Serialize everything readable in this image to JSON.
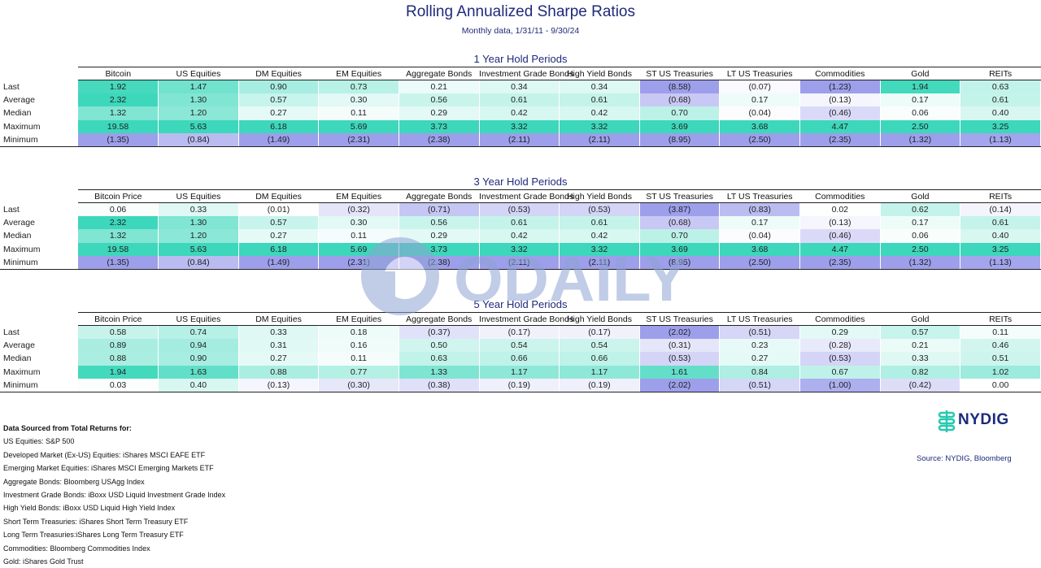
{
  "title": "Rolling Annualized Sharpe Ratios",
  "subtitle": "Monthly data, 1/31/11 - 9/30/24",
  "colors": {
    "neg": "#9ea0ec",
    "pos": "#28d3b4",
    "header_text": "#1f2a7a",
    "brand": "#1c2b7d"
  },
  "chart_data": [
    {
      "type": "table",
      "title": "1 Year Hold Periods",
      "columns": [
        "Bitcoin",
        "US Equities",
        "DM Equities",
        "EM Equities",
        "Aggregate Bonds",
        "Investment Grade Bonds",
        "High Yield Bonds",
        "ST US Treasuries",
        "LT US Treasuries",
        "Commodities",
        "Gold",
        "REITs"
      ],
      "rows": [
        {
          "label": "Last",
          "values": [
            "1.92",
            "1.47",
            "0.90",
            "0.73",
            "0.21",
            "0.34",
            "0.34",
            "(8.58)",
            "(0.07)",
            "(1.23)",
            "1.94",
            "0.63"
          ]
        },
        {
          "label": "Average",
          "values": [
            "2.32",
            "1.30",
            "0.57",
            "0.30",
            "0.56",
            "0.61",
            "0.61",
            "(0.68)",
            "0.17",
            "(0.13)",
            "0.17",
            "0.61"
          ]
        },
        {
          "label": "Median",
          "values": [
            "1.32",
            "1.20",
            "0.27",
            "0.11",
            "0.29",
            "0.42",
            "0.42",
            "0.70",
            "(0.04)",
            "(0.46)",
            "0.06",
            "0.40"
          ]
        },
        {
          "label": "Maximum",
          "values": [
            "19.58",
            "5.63",
            "6.18",
            "5.69",
            "3.73",
            "3.32",
            "3.32",
            "3.69",
            "3.68",
            "4.47",
            "2.50",
            "3.25"
          ]
        },
        {
          "label": "Minimum",
          "values": [
            "(1.35)",
            "(0.84)",
            "(1.49)",
            "(2.31)",
            "(2.38)",
            "(2.11)",
            "(2.11)",
            "(8.95)",
            "(2.50)",
            "(2.35)",
            "(1.32)",
            "(1.13)"
          ]
        }
      ]
    },
    {
      "type": "table",
      "title": "3 Year Hold Periods",
      "columns": [
        "Bitcoin Price",
        "US Equities",
        "DM Equities",
        "EM Equities",
        "Aggregate Bonds",
        "Investment Grade Bonds",
        "High Yield Bonds",
        "ST US Treasuries",
        "LT US Treasuries",
        "Commodities",
        "Gold",
        "REITs"
      ],
      "rows": [
        {
          "label": "Last",
          "values": [
            "0.06",
            "0.33",
            "(0.01)",
            "(0.32)",
            "(0.71)",
            "(0.53)",
            "(0.53)",
            "(3.87)",
            "(0.83)",
            "0.02",
            "0.62",
            "(0.14)"
          ]
        },
        {
          "label": "Average",
          "values": [
            "2.32",
            "1.30",
            "0.57",
            "0.30",
            "0.56",
            "0.61",
            "0.61",
            "(0.68)",
            "0.17",
            "(0.13)",
            "0.17",
            "0.61"
          ]
        },
        {
          "label": "Median",
          "values": [
            "1.32",
            "1.20",
            "0.27",
            "0.11",
            "0.29",
            "0.42",
            "0.42",
            "0.70",
            "(0.04)",
            "(0.46)",
            "0.06",
            "0.40"
          ]
        },
        {
          "label": "Maximum",
          "values": [
            "19.58",
            "5.63",
            "6.18",
            "5.69",
            "3.73",
            "3.32",
            "3.32",
            "3.69",
            "3.68",
            "4.47",
            "2.50",
            "3.25"
          ]
        },
        {
          "label": "Minimum",
          "values": [
            "(1.35)",
            "(0.84)",
            "(1.49)",
            "(2.31)",
            "(2.38)",
            "(2.11)",
            "(2.11)",
            "(8.95)",
            "(2.50)",
            "(2.35)",
            "(1.32)",
            "(1.13)"
          ]
        }
      ]
    },
    {
      "type": "table",
      "title": "5 Year Hold Periods",
      "columns": [
        "Bitcoin Price",
        "US Equities",
        "DM Equities",
        "EM Equities",
        "Aggregate Bonds",
        "Investment Grade Bonds",
        "High Yield Bonds",
        "ST US Treasuries",
        "LT US Treasuries",
        "Commodities",
        "Gold",
        "REITs"
      ],
      "rows": [
        {
          "label": "Last",
          "values": [
            "0.58",
            "0.74",
            "0.33",
            "0.18",
            "(0.37)",
            "(0.17)",
            "(0.17)",
            "(2.02)",
            "(0.51)",
            "0.29",
            "0.57",
            "0.11"
          ]
        },
        {
          "label": "Average",
          "values": [
            "0.89",
            "0.94",
            "0.31",
            "0.16",
            "0.50",
            "0.54",
            "0.54",
            "(0.31)",
            "0.23",
            "(0.28)",
            "0.21",
            "0.46"
          ]
        },
        {
          "label": "Median",
          "values": [
            "0.88",
            "0.90",
            "0.27",
            "0.11",
            "0.63",
            "0.66",
            "0.66",
            "(0.53)",
            "0.27",
            "(0.53)",
            "0.33",
            "0.51"
          ]
        },
        {
          "label": "Maximum",
          "values": [
            "1.94",
            "1.63",
            "0.88",
            "0.77",
            "1.33",
            "1.17",
            "1.17",
            "1.61",
            "0.84",
            "0.67",
            "0.82",
            "1.02"
          ]
        },
        {
          "label": "Minimum",
          "values": [
            "0.03",
            "0.40",
            "(0.13)",
            "(0.30)",
            "(0.38)",
            "(0.19)",
            "(0.19)",
            "(2.02)",
            "(0.51)",
            "(1.00)",
            "(0.42)",
            "0.00"
          ]
        }
      ]
    }
  ],
  "notes": {
    "heading": "Data Sourced from Total Returns for:",
    "lines": [
      "US Equities: S&P 500",
      "Developed Market (Ex-US) Equities: iShares MSCI EAFE ETF",
      "Emerging Market Equities: iShares MSCI Emerging Markets ETF",
      "Aggregate Bonds: Bloomberg USAgg Index",
      "Investment Grade Bonds: iBoxx USD Liquid Investment Grade Index",
      "High Yield Bonds: iBoxx USD Liquid High Yield Index",
      "Short Term Treasuries: iShares Short Term Treasury ETF",
      "Long Term Treasuries:iShares Long Term Treasury ETF",
      "Commodities: Bloomberg Commodities Index",
      "Gold: iShares Gold Trust"
    ]
  },
  "brand": {
    "name": "NYDIG",
    "logo_icon": "nydig-logo-icon"
  },
  "source": "Source: NYDIG, Bloomberg",
  "watermark": {
    "text": "ODAILY",
    "icon": "odaily-watermark-icon"
  }
}
